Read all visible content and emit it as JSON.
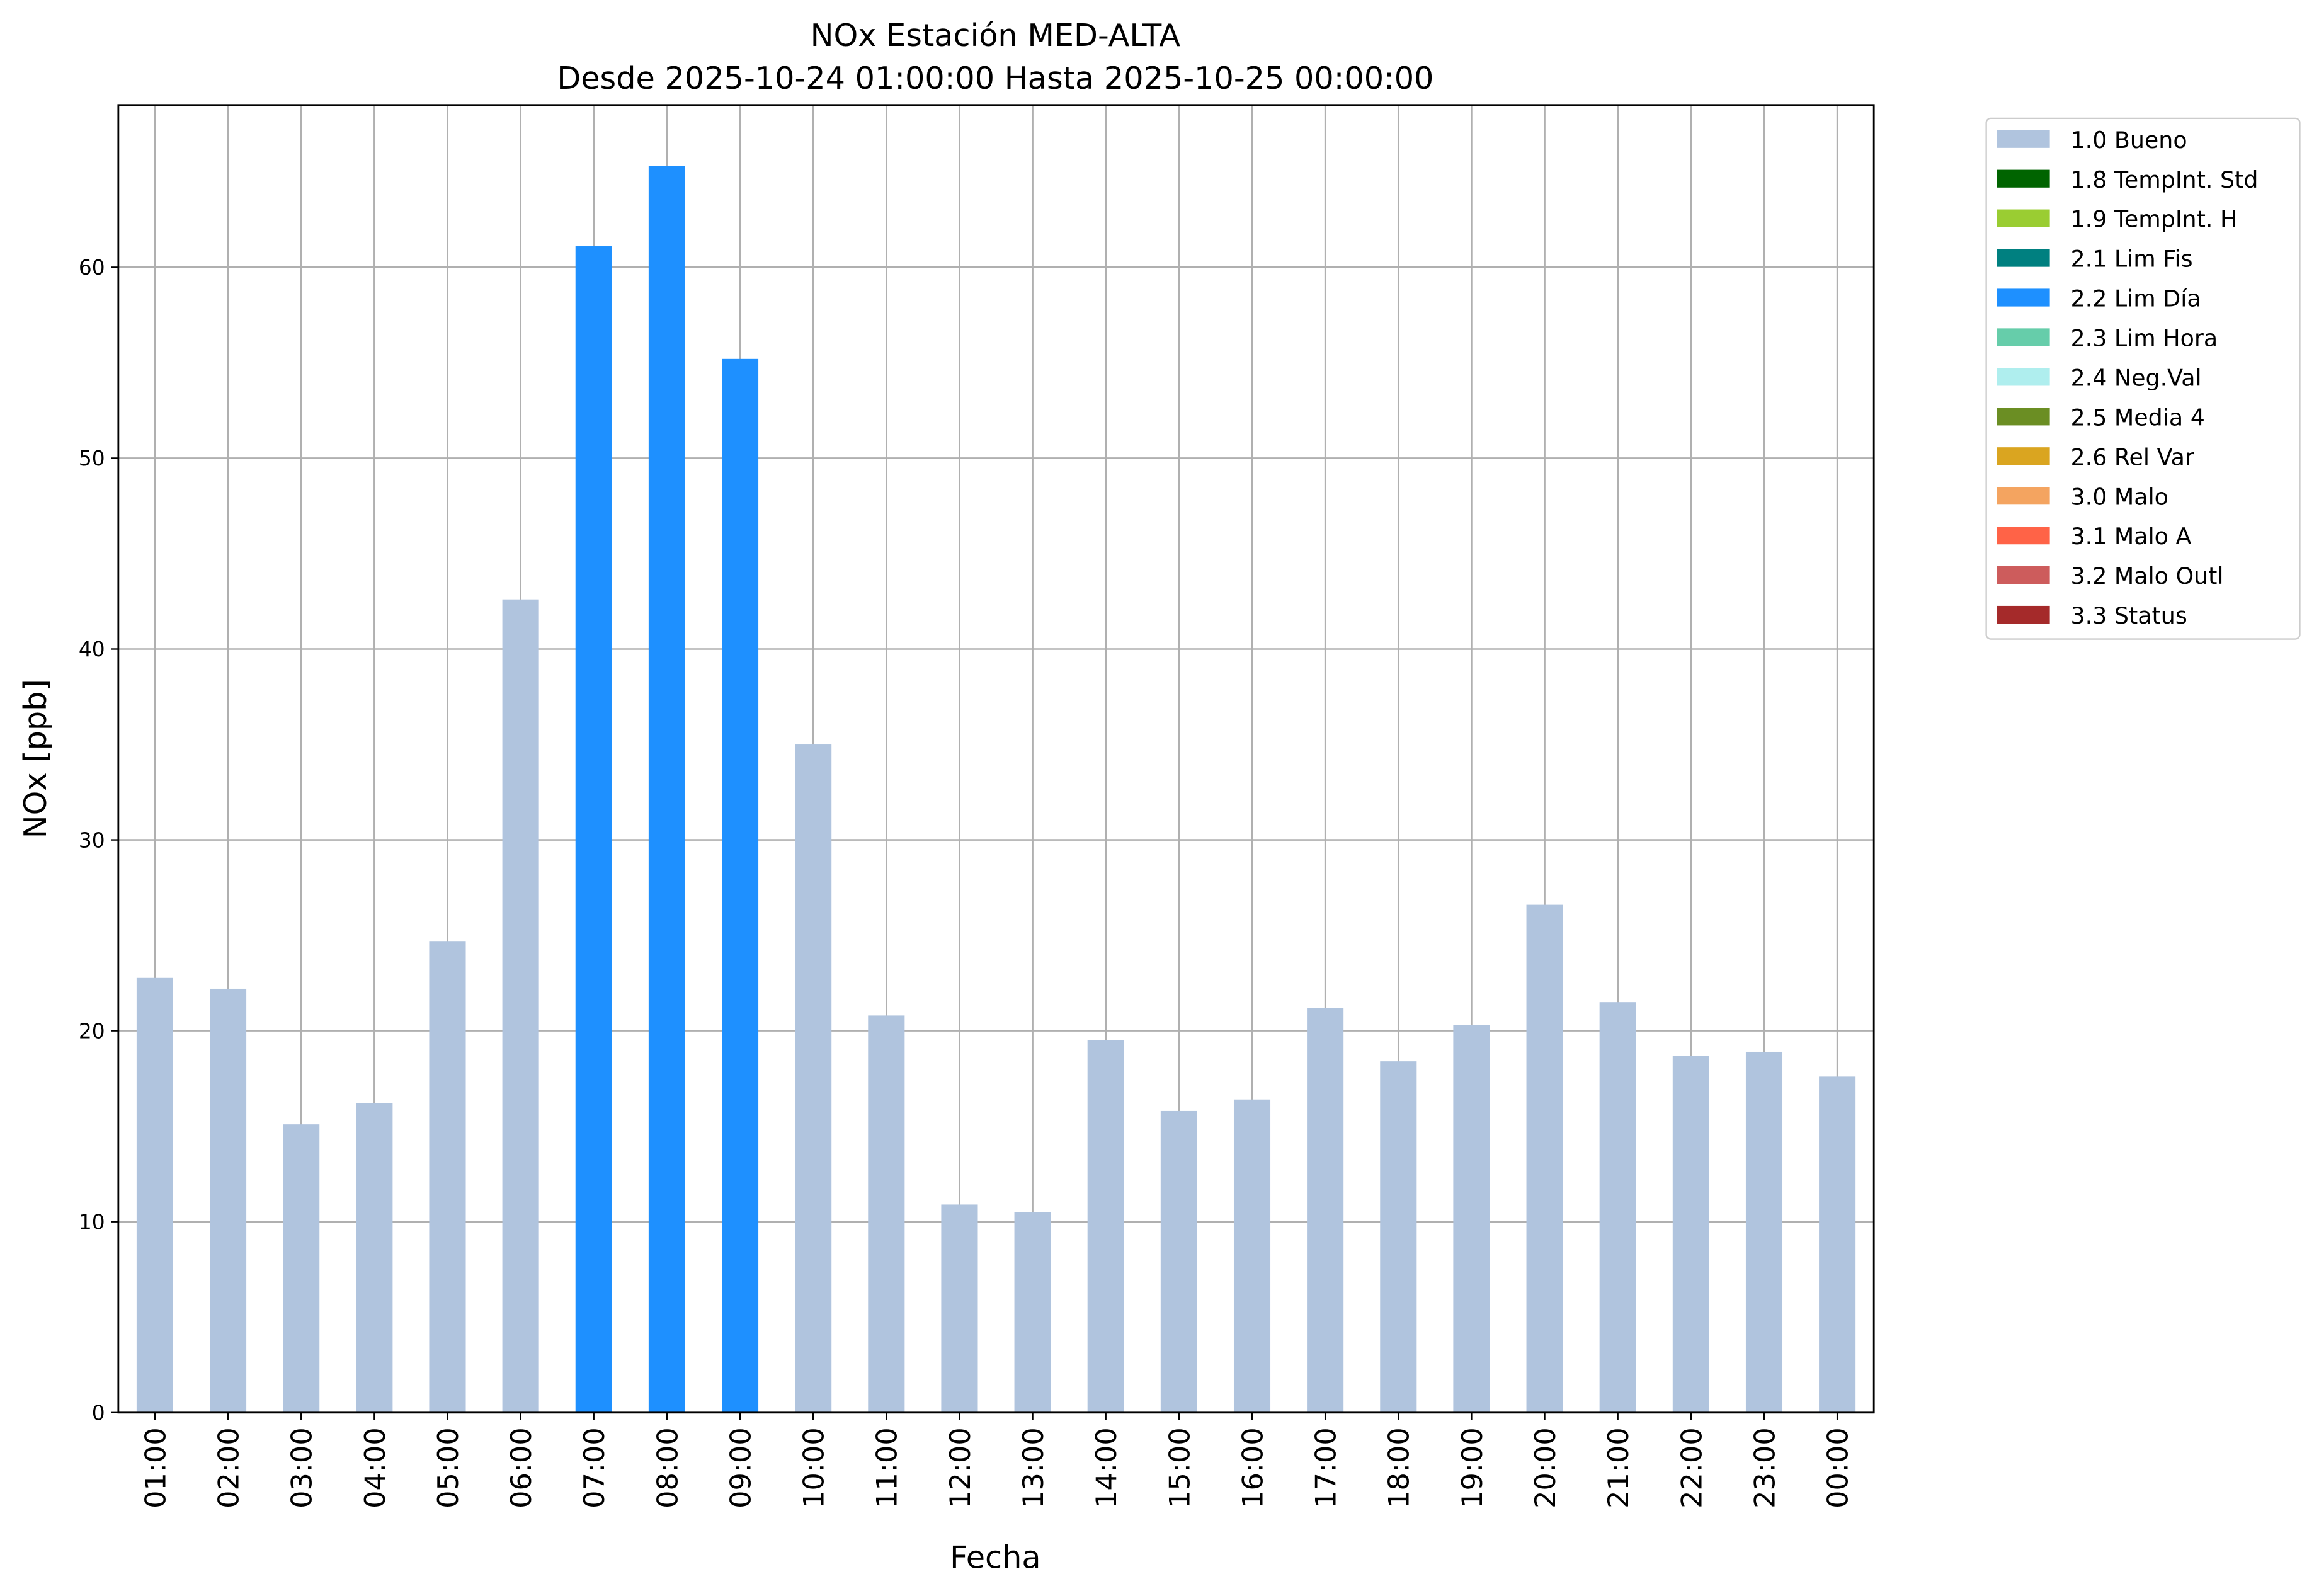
{
  "chart_data": {
    "type": "stacked-bar",
    "title": "NOx Estación MED-ALTA",
    "subtitle": "Desde 2025-10-24 01:00:00 Hasta 2025-10-25 00:00:00",
    "x_label": "Fecha",
    "y_label": "NOx [ppb]",
    "categories": [
      "01:00",
      "02:00",
      "03:00",
      "04:00",
      "05:00",
      "06:00",
      "07:00",
      "08:00",
      "09:00",
      "10:00",
      "11:00",
      "12:00",
      "13:00",
      "14:00",
      "15:00",
      "16:00",
      "17:00",
      "18:00",
      "19:00",
      "20:00",
      "21:00",
      "22:00",
      "23:00",
      "00:00"
    ],
    "ylim": [
      0,
      68.5
    ],
    "yticks": [
      0,
      10,
      20,
      30,
      40,
      50,
      60
    ],
    "grid": true,
    "legend": "outside-upper-right",
    "series": [
      {
        "name": "1.0 Bueno",
        "color": "#b0c4de",
        "values": [
          22.8,
          22.2,
          15.1,
          16.2,
          24.7,
          42.6,
          null,
          null,
          null,
          35.0,
          20.8,
          10.9,
          10.5,
          19.5,
          15.8,
          16.4,
          21.2,
          18.4,
          20.3,
          26.6,
          21.5,
          18.7,
          18.9,
          17.6
        ]
      },
      {
        "name": "1.8 TempInt. Std",
        "color": "#006400",
        "values": [
          null,
          null,
          null,
          null,
          null,
          null,
          null,
          null,
          null,
          null,
          null,
          null,
          null,
          null,
          null,
          null,
          null,
          null,
          null,
          null,
          null,
          null,
          null,
          null
        ]
      },
      {
        "name": "1.9 TempInt. H",
        "color": "#9acd32",
        "values": [
          null,
          null,
          null,
          null,
          null,
          null,
          null,
          null,
          null,
          null,
          null,
          null,
          null,
          null,
          null,
          null,
          null,
          null,
          null,
          null,
          null,
          null,
          null,
          null
        ]
      },
      {
        "name": "2.1 Lim Fis",
        "color": "#008080",
        "values": [
          null,
          null,
          null,
          null,
          null,
          null,
          null,
          null,
          null,
          null,
          null,
          null,
          null,
          null,
          null,
          null,
          null,
          null,
          null,
          null,
          null,
          null,
          null,
          null
        ]
      },
      {
        "name": "2.2 Lim Día",
        "color": "#1e90ff",
        "values": [
          null,
          null,
          null,
          null,
          null,
          null,
          61.1,
          65.3,
          55.2,
          null,
          null,
          null,
          null,
          null,
          null,
          null,
          null,
          null,
          null,
          null,
          null,
          null,
          null,
          null
        ]
      },
      {
        "name": "2.3 Lim Hora",
        "color": "#66cdaa",
        "values": [
          null,
          null,
          null,
          null,
          null,
          null,
          null,
          null,
          null,
          null,
          null,
          null,
          null,
          null,
          null,
          null,
          null,
          null,
          null,
          null,
          null,
          null,
          null,
          null
        ]
      },
      {
        "name": "2.4 Neg.Val",
        "color": "#afeeee",
        "values": [
          null,
          null,
          null,
          null,
          null,
          null,
          null,
          null,
          null,
          null,
          null,
          null,
          null,
          null,
          null,
          null,
          null,
          null,
          null,
          null,
          null,
          null,
          null,
          null
        ]
      },
      {
        "name": "2.5 Media 4",
        "color": "#6b8e23",
        "values": [
          null,
          null,
          null,
          null,
          null,
          null,
          null,
          null,
          null,
          null,
          null,
          null,
          null,
          null,
          null,
          null,
          null,
          null,
          null,
          null,
          null,
          null,
          null,
          null
        ]
      },
      {
        "name": "2.6 Rel Var",
        "color": "#daa520",
        "values": [
          null,
          null,
          null,
          null,
          null,
          null,
          null,
          null,
          null,
          null,
          null,
          null,
          null,
          null,
          null,
          null,
          null,
          null,
          null,
          null,
          null,
          null,
          null,
          null
        ]
      },
      {
        "name": "3.0 Malo",
        "color": "#f4a460",
        "values": [
          null,
          null,
          null,
          null,
          null,
          null,
          null,
          null,
          null,
          null,
          null,
          null,
          null,
          null,
          null,
          null,
          null,
          null,
          null,
          null,
          null,
          null,
          null,
          null
        ]
      },
      {
        "name": "3.1 Malo A",
        "color": "#ff6347",
        "values": [
          null,
          null,
          null,
          null,
          null,
          null,
          null,
          null,
          null,
          null,
          null,
          null,
          null,
          null,
          null,
          null,
          null,
          null,
          null,
          null,
          null,
          null,
          null,
          null
        ]
      },
      {
        "name": "3.2 Malo Outl",
        "color": "#cd5c5c",
        "values": [
          null,
          null,
          null,
          null,
          null,
          null,
          null,
          null,
          null,
          null,
          null,
          null,
          null,
          null,
          null,
          null,
          null,
          null,
          null,
          null,
          null,
          null,
          null,
          null
        ]
      },
      {
        "name": "3.3 Status",
        "color": "#a52a2a",
        "values": [
          null,
          null,
          null,
          null,
          null,
          null,
          null,
          null,
          null,
          null,
          null,
          null,
          null,
          null,
          null,
          null,
          null,
          null,
          null,
          null,
          null,
          null,
          null,
          null
        ]
      }
    ]
  }
}
